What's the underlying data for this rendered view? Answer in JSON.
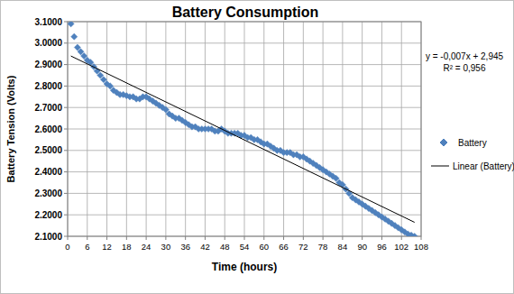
{
  "chart_data": {
    "type": "scatter",
    "title": "Battery Consumption",
    "x_label": "Time (hours)",
    "y_label": "Battery Tension (Volts)",
    "annotations": [
      "y = -0,007x + 2,945",
      "R² = 0,956"
    ],
    "xlim": [
      0,
      108
    ],
    "xticks": [
      0,
      6,
      12,
      18,
      24,
      30,
      36,
      42,
      48,
      54,
      60,
      66,
      72,
      78,
      84,
      90,
      96,
      102,
      108
    ],
    "ylim": [
      2.1,
      3.1
    ],
    "yticks": [
      {
        "value": 2.1,
        "label": "2.1000"
      },
      {
        "value": 2.2,
        "label": "2.2000"
      },
      {
        "value": 2.3,
        "label": "2.3000"
      },
      {
        "value": 2.4,
        "label": "2.4000"
      },
      {
        "value": 2.5,
        "label": "2.5000"
      },
      {
        "value": 2.6,
        "label": "2.6000"
      },
      {
        "value": 2.7,
        "label": "2.7000"
      },
      {
        "value": 2.8,
        "label": "2.8000"
      },
      {
        "value": 2.9,
        "label": "2.9000"
      },
      {
        "value": 3.0,
        "label": "3.0000"
      },
      {
        "value": 3.1,
        "label": "3.1000"
      }
    ],
    "grid": true,
    "legend": "right",
    "series": [
      {
        "name": "Battery",
        "type": "scatter",
        "marker": "diamond",
        "color": "#4f81bd",
        "x": [
          1,
          2,
          3,
          4,
          5,
          6,
          7,
          8,
          9,
          10,
          11,
          12,
          13,
          14,
          15,
          16,
          17,
          18,
          19,
          20,
          21,
          22,
          23,
          24,
          25,
          26,
          27,
          28,
          29,
          30,
          31,
          32,
          33,
          34,
          35,
          36,
          37,
          38,
          39,
          40,
          41,
          42,
          43,
          44,
          45,
          46,
          47,
          48,
          49,
          50,
          51,
          52,
          53,
          54,
          55,
          56,
          57,
          58,
          59,
          60,
          61,
          62,
          63,
          64,
          65,
          66,
          67,
          68,
          69,
          70,
          71,
          72,
          73,
          74,
          75,
          76,
          77,
          78,
          79,
          80,
          81,
          82,
          83,
          84,
          85,
          86,
          87,
          88,
          89,
          90,
          91,
          92,
          93,
          94,
          95,
          96,
          97,
          98,
          99,
          100,
          101,
          102,
          103,
          104,
          105,
          106
        ],
        "values": [
          3.09,
          3.03,
          2.98,
          2.96,
          2.94,
          2.92,
          2.91,
          2.89,
          2.87,
          2.85,
          2.83,
          2.81,
          2.8,
          2.78,
          2.77,
          2.76,
          2.76,
          2.755,
          2.75,
          2.75,
          2.74,
          2.74,
          2.75,
          2.75,
          2.74,
          2.73,
          2.72,
          2.71,
          2.7,
          2.69,
          2.67,
          2.66,
          2.65,
          2.65,
          2.64,
          2.63,
          2.62,
          2.61,
          2.61,
          2.6,
          2.6,
          2.6,
          2.6,
          2.6,
          2.59,
          2.59,
          2.6,
          2.59,
          2.58,
          2.58,
          2.58,
          2.58,
          2.57,
          2.57,
          2.56,
          2.56,
          2.55,
          2.55,
          2.54,
          2.53,
          2.53,
          2.52,
          2.51,
          2.5,
          2.5,
          2.49,
          2.49,
          2.49,
          2.48,
          2.48,
          2.47,
          2.47,
          2.46,
          2.45,
          2.44,
          2.43,
          2.42,
          2.41,
          2.4,
          2.39,
          2.38,
          2.37,
          2.35,
          2.34,
          2.32,
          2.3,
          2.28,
          2.27,
          2.26,
          2.25,
          2.24,
          2.23,
          2.22,
          2.21,
          2.2,
          2.19,
          2.18,
          2.17,
          2.16,
          2.15,
          2.14,
          2.13,
          2.12,
          2.11,
          2.105,
          2.1
        ]
      },
      {
        "name": "Linear (Battery)",
        "type": "line",
        "line_style": "solid",
        "color": "#000000",
        "x": [
          1,
          106
        ],
        "values": [
          2.94,
          2.165
        ]
      }
    ]
  }
}
